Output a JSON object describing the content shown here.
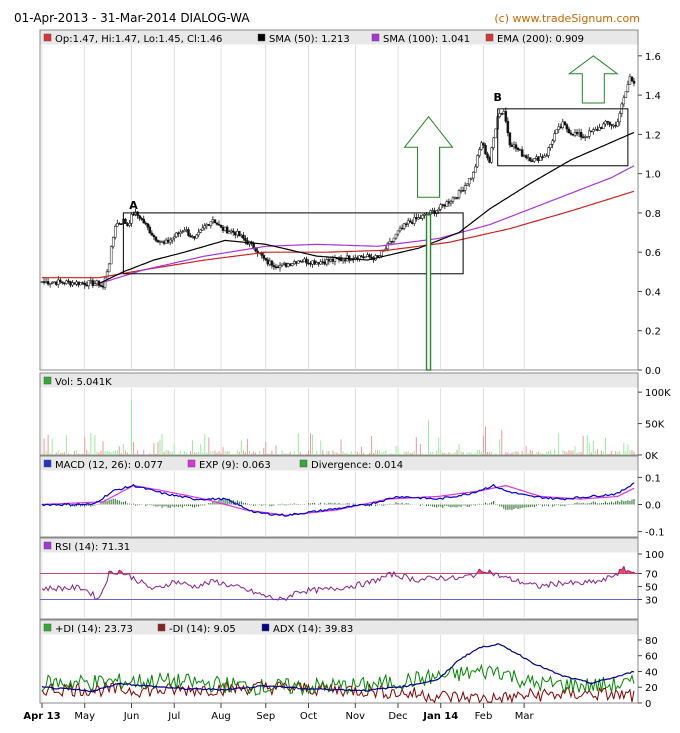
{
  "header": {
    "title": "01-Apr-2013 - 31-Mar-2014 DIALOG-WA",
    "brand": "(c) www.tradeSignum.com"
  },
  "colors": {
    "panel_bg": "#ffffff",
    "legend_bg": "#e8e8e8",
    "grid": "#cccccc",
    "brand": "#cc6600",
    "candle": "#111111",
    "sma50": "#000000",
    "sma100": "#aa33dd",
    "ema200": "#cc2222",
    "volume": "#99ee99",
    "volume_spike": "#ee9999",
    "macd": "#0000cc",
    "exp": "#dd33dd",
    "divergence": "#226622",
    "rsi": "#882288",
    "rsi_fill": "#ff4444",
    "pdi": "#008800",
    "mdi": "#880000",
    "adx": "#000088",
    "arrow": "#228822"
  },
  "x_axis": {
    "labels": [
      "Apr 13",
      "May",
      "Jun",
      "Jul",
      "Aug",
      "Sep",
      "Oct",
      "Nov",
      "Dec",
      "Jan 14",
      "Feb",
      "Mar"
    ]
  },
  "chart_data": [
    {
      "type": "candlestick",
      "legend": [
        {
          "label": "Op:1.47, Hi:1.47, Lo:1.45, Cl:1.46",
          "icon": "red-square"
        },
        {
          "label": "SMA (50): 1.213",
          "icon": "black-square"
        },
        {
          "label": "SMA (100): 1.041",
          "icon": "purple-square"
        },
        {
          "label": "EMA (200): 0.909",
          "icon": "red-square"
        }
      ],
      "y_ticks": [
        "1.6",
        "1.4",
        "1.2",
        "1.0",
        "0.8",
        "0.6",
        "0.4",
        "0.2",
        "0.0"
      ],
      "ylim": [
        0,
        1.65
      ],
      "close_anchors": [
        [
          0,
          0.45
        ],
        [
          28,
          0.44
        ],
        [
          30,
          0.42
        ],
        [
          33,
          0.55
        ],
        [
          36,
          0.74
        ],
        [
          40,
          0.76
        ],
        [
          42,
          0.74
        ],
        [
          45,
          0.8
        ],
        [
          48,
          0.78
        ],
        [
          55,
          0.68
        ],
        [
          60,
          0.64
        ],
        [
          65,
          0.68
        ],
        [
          70,
          0.72
        ],
        [
          75,
          0.66
        ],
        [
          80,
          0.73
        ],
        [
          84,
          0.77
        ],
        [
          88,
          0.72
        ],
        [
          95,
          0.7
        ],
        [
          105,
          0.62
        ],
        [
          110,
          0.55
        ],
        [
          118,
          0.53
        ],
        [
          126,
          0.56
        ],
        [
          135,
          0.55
        ],
        [
          145,
          0.56
        ],
        [
          155,
          0.58
        ],
        [
          165,
          0.57
        ],
        [
          170,
          0.63
        ],
        [
          175,
          0.7
        ],
        [
          180,
          0.75
        ],
        [
          187,
          0.78
        ],
        [
          195,
          0.82
        ],
        [
          205,
          0.9
        ],
        [
          212,
          1.0
        ],
        [
          216,
          1.16
        ],
        [
          220,
          1.06
        ],
        [
          224,
          1.3
        ],
        [
          227,
          1.32
        ],
        [
          230,
          1.16
        ],
        [
          236,
          1.1
        ],
        [
          242,
          1.07
        ],
        [
          248,
          1.1
        ],
        [
          252,
          1.2
        ],
        [
          256,
          1.25
        ],
        [
          260,
          1.21
        ],
        [
          266,
          1.19
        ],
        [
          272,
          1.22
        ],
        [
          278,
          1.26
        ],
        [
          282,
          1.24
        ],
        [
          286,
          1.38
        ],
        [
          289,
          1.49
        ],
        [
          291,
          1.46
        ]
      ],
      "sma50_anchors": [
        [
          28,
          0.44
        ],
        [
          40,
          0.5
        ],
        [
          55,
          0.56
        ],
        [
          70,
          0.6
        ],
        [
          90,
          0.66
        ],
        [
          110,
          0.64
        ],
        [
          135,
          0.58
        ],
        [
          160,
          0.56
        ],
        [
          185,
          0.62
        ],
        [
          205,
          0.7
        ],
        [
          220,
          0.82
        ],
        [
          240,
          0.95
        ],
        [
          260,
          1.07
        ],
        [
          280,
          1.16
        ],
        [
          291,
          1.21
        ]
      ],
      "sma100_anchors": [
        [
          28,
          0.44
        ],
        [
          50,
          0.51
        ],
        [
          80,
          0.58
        ],
        [
          110,
          0.63
        ],
        [
          135,
          0.64
        ],
        [
          165,
          0.63
        ],
        [
          195,
          0.67
        ],
        [
          220,
          0.74
        ],
        [
          240,
          0.82
        ],
        [
          260,
          0.9
        ],
        [
          280,
          0.98
        ],
        [
          291,
          1.04
        ]
      ],
      "ema200_anchors": [
        [
          0,
          0.47
        ],
        [
          28,
          0.47
        ],
        [
          50,
          0.51
        ],
        [
          80,
          0.56
        ],
        [
          110,
          0.6
        ],
        [
          140,
          0.6
        ],
        [
          170,
          0.61
        ],
        [
          200,
          0.65
        ],
        [
          230,
          0.72
        ],
        [
          260,
          0.81
        ],
        [
          291,
          0.91
        ]
      ],
      "annotations": [
        {
          "label": "A",
          "x": 45,
          "y": 0.82
        },
        {
          "label": "B",
          "x": 224,
          "y": 1.37
        }
      ],
      "boxes": [
        {
          "x0": 40,
          "x1": 207,
          "y0": 0.49,
          "y1": 0.8
        },
        {
          "x0": 224,
          "x1": 288,
          "y0": 1.04,
          "y1": 1.33
        }
      ],
      "arrows": [
        {
          "x": 190,
          "tip": 1.29,
          "base": 0.88
        },
        {
          "x": 271,
          "tip": 1.6,
          "base": 1.36
        }
      ],
      "spike": {
        "x": 190,
        "low": 0.0,
        "high": 0.79
      }
    },
    {
      "type": "bar",
      "legend": [
        {
          "label": "Vol: 5.041K",
          "icon": "green-square"
        }
      ],
      "y_ticks": [
        "100K",
        "50K",
        "0K"
      ],
      "ylim": [
        0,
        105
      ]
    },
    {
      "type": "line",
      "legend": [
        {
          "label": "MACD (12, 26): 0.077",
          "icon": "blue-square"
        },
        {
          "label": "EXP (9): 0.063",
          "icon": "magenta-square"
        },
        {
          "label": "Divergence: 0.014",
          "icon": "green-square"
        }
      ],
      "y_ticks": [
        "0.1",
        "0.0",
        "-0.1"
      ],
      "ylim": [
        -0.12,
        0.12
      ],
      "macd_anchors": [
        [
          0,
          0.0
        ],
        [
          25,
          0.0
        ],
        [
          35,
          0.05
        ],
        [
          45,
          0.07
        ],
        [
          60,
          0.04
        ],
        [
          75,
          0.02
        ],
        [
          90,
          0.02
        ],
        [
          105,
          -0.03
        ],
        [
          120,
          -0.04
        ],
        [
          140,
          -0.02
        ],
        [
          160,
          0.0
        ],
        [
          175,
          0.03
        ],
        [
          195,
          0.02
        ],
        [
          210,
          0.04
        ],
        [
          222,
          0.07
        ],
        [
          228,
          0.05
        ],
        [
          240,
          0.03
        ],
        [
          255,
          0.02
        ],
        [
          270,
          0.03
        ],
        [
          283,
          0.04
        ],
        [
          291,
          0.08
        ]
      ],
      "exp_anchors": [
        [
          0,
          0.0
        ],
        [
          30,
          0.01
        ],
        [
          45,
          0.07
        ],
        [
          60,
          0.05
        ],
        [
          80,
          0.02
        ],
        [
          100,
          -0.02
        ],
        [
          120,
          -0.04
        ],
        [
          145,
          -0.02
        ],
        [
          170,
          0.02
        ],
        [
          195,
          0.03
        ],
        [
          215,
          0.05
        ],
        [
          228,
          0.07
        ],
        [
          245,
          0.03
        ],
        [
          265,
          0.02
        ],
        [
          283,
          0.03
        ],
        [
          291,
          0.06
        ]
      ]
    },
    {
      "type": "line",
      "legend": [
        {
          "label": "RSI (14): 71.31",
          "icon": "purple-square"
        }
      ],
      "y_ticks": [
        "100",
        "70",
        "50",
        "30"
      ],
      "ylim": [
        0,
        100
      ],
      "levels": [
        70,
        30
      ],
      "rsi_anchors": [
        [
          0,
          47
        ],
        [
          20,
          48
        ],
        [
          28,
          31
        ],
        [
          33,
          70
        ],
        [
          38,
          74
        ],
        [
          45,
          63
        ],
        [
          55,
          45
        ],
        [
          65,
          58
        ],
        [
          75,
          50
        ],
        [
          85,
          58
        ],
        [
          100,
          45
        ],
        [
          110,
          35
        ],
        [
          118,
          29
        ],
        [
          126,
          43
        ],
        [
          140,
          45
        ],
        [
          160,
          55
        ],
        [
          172,
          69
        ],
        [
          185,
          60
        ],
        [
          195,
          64
        ],
        [
          205,
          62
        ],
        [
          212,
          68
        ],
        [
          218,
          76
        ],
        [
          224,
          67
        ],
        [
          234,
          58
        ],
        [
          244,
          50
        ],
        [
          256,
          56
        ],
        [
          264,
          54
        ],
        [
          276,
          59
        ],
        [
          286,
          76
        ],
        [
          291,
          71
        ]
      ]
    },
    {
      "type": "line",
      "legend": [
        {
          "label": "+DI (14): 23.73",
          "icon": "green-square"
        },
        {
          "label": "-DI (14): 9.05",
          "icon": "darkred-square"
        },
        {
          "label": "ADX (14): 39.83",
          "icon": "navy-square"
        }
      ],
      "y_ticks": [
        "80",
        "60",
        "40",
        "20",
        "0"
      ],
      "ylim": [
        0,
        85
      ],
      "adx_anchors": [
        [
          0,
          20
        ],
        [
          25,
          15
        ],
        [
          38,
          25
        ],
        [
          50,
          22
        ],
        [
          70,
          18
        ],
        [
          90,
          17
        ],
        [
          110,
          22
        ],
        [
          130,
          18
        ],
        [
          160,
          16
        ],
        [
          180,
          22
        ],
        [
          195,
          30
        ],
        [
          205,
          55
        ],
        [
          215,
          70
        ],
        [
          224,
          75
        ],
        [
          232,
          65
        ],
        [
          242,
          50
        ],
        [
          255,
          35
        ],
        [
          270,
          25
        ],
        [
          285,
          35
        ],
        [
          291,
          40
        ]
      ]
    }
  ]
}
